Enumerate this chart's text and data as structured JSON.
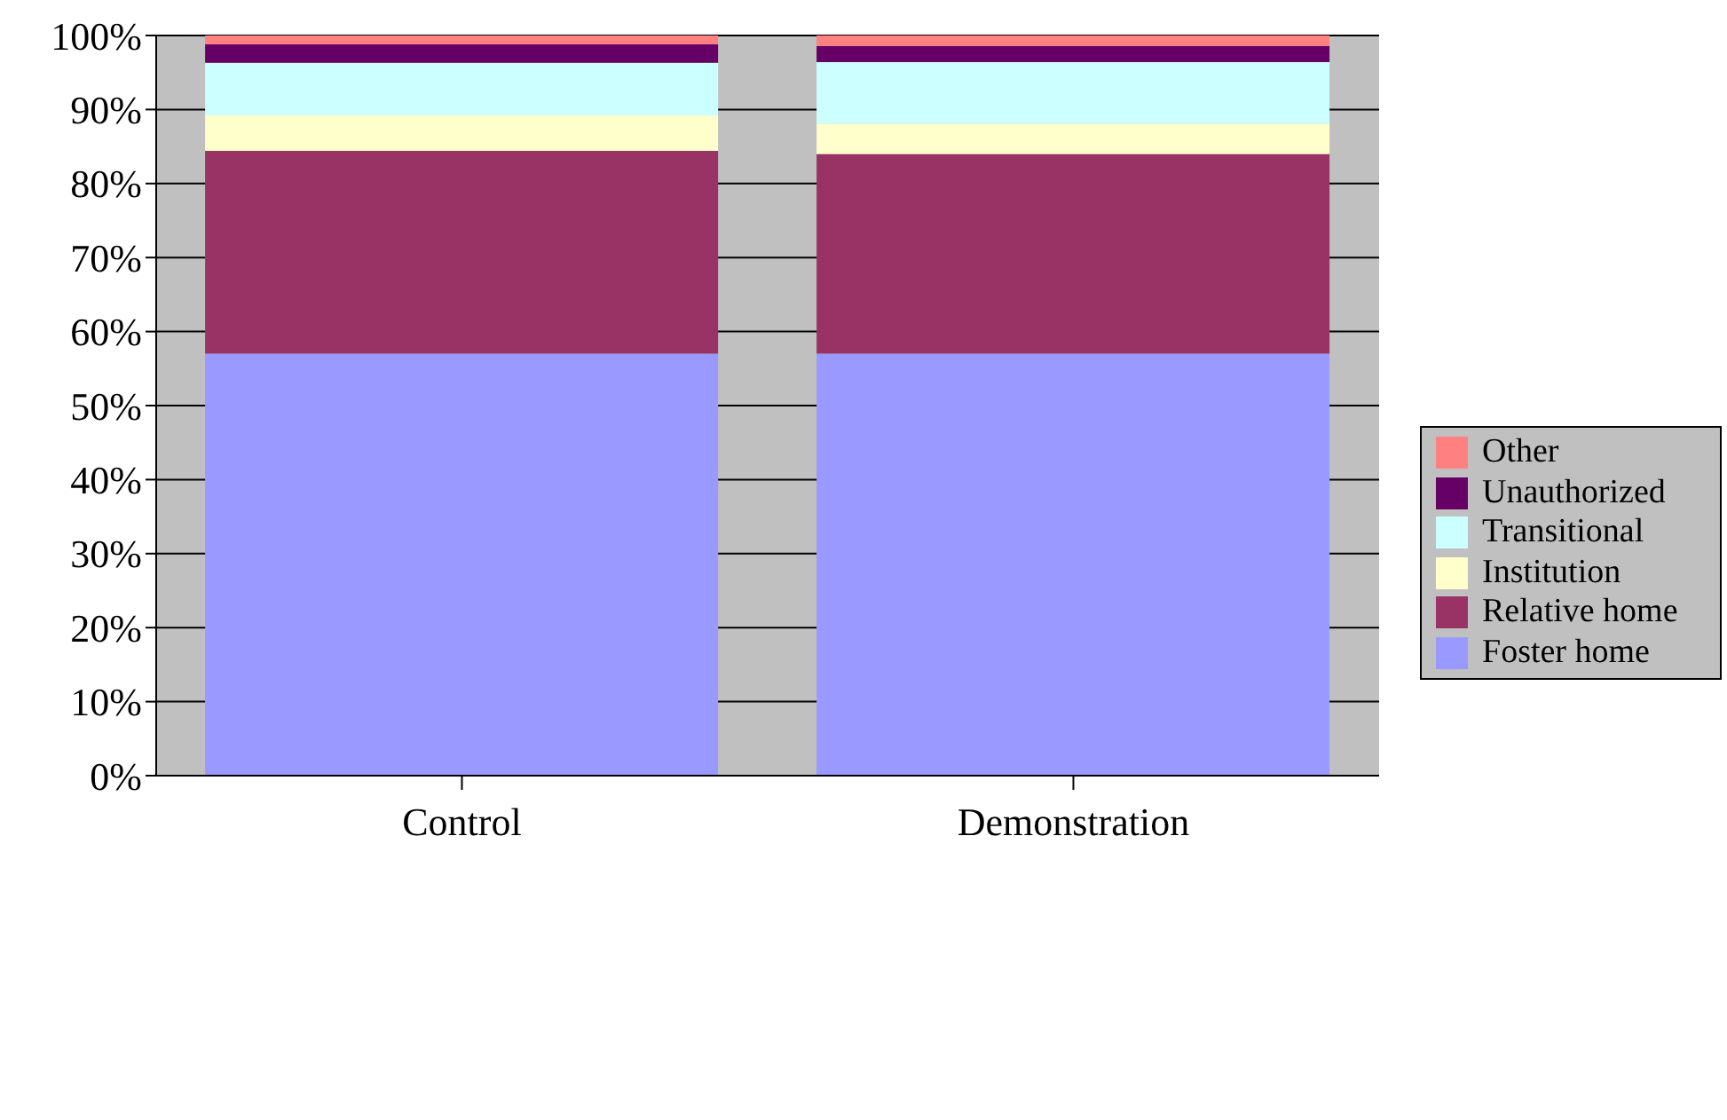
{
  "chart_data": {
    "type": "bar",
    "stacked": true,
    "categories": [
      "Control",
      "Demonstration"
    ],
    "series": [
      {
        "name": "Foster home",
        "color": "#9999ff",
        "values": [
          57,
          57
        ]
      },
      {
        "name": "Relative home",
        "color": "#993366",
        "values": [
          27.4,
          27
        ]
      },
      {
        "name": "Institution",
        "color": "#ffffcc",
        "values": [
          4.8,
          4.1
        ]
      },
      {
        "name": "Transitional",
        "color": "#ccffff",
        "values": [
          7.1,
          8.3
        ]
      },
      {
        "name": "Unauthorized",
        "color": "#660066",
        "values": [
          2.5,
          2.2
        ]
      },
      {
        "name": "Other",
        "color": "#ff8080",
        "values": [
          1.2,
          1.4
        ]
      }
    ],
    "ylim": [
      0,
      100
    ],
    "yticks": [
      {
        "value": 0,
        "label": "0%"
      },
      {
        "value": 10,
        "label": "10%"
      },
      {
        "value": 20,
        "label": "20%"
      },
      {
        "value": 30,
        "label": "30%"
      },
      {
        "value": 40,
        "label": "40%"
      },
      {
        "value": 50,
        "label": "50%"
      },
      {
        "value": 60,
        "label": "60%"
      },
      {
        "value": 70,
        "label": "70%"
      },
      {
        "value": 80,
        "label": "80%"
      },
      {
        "value": 90,
        "label": "90%"
      },
      {
        "value": 100,
        "label": "100%"
      }
    ],
    "grid": "y",
    "legend": "right"
  }
}
